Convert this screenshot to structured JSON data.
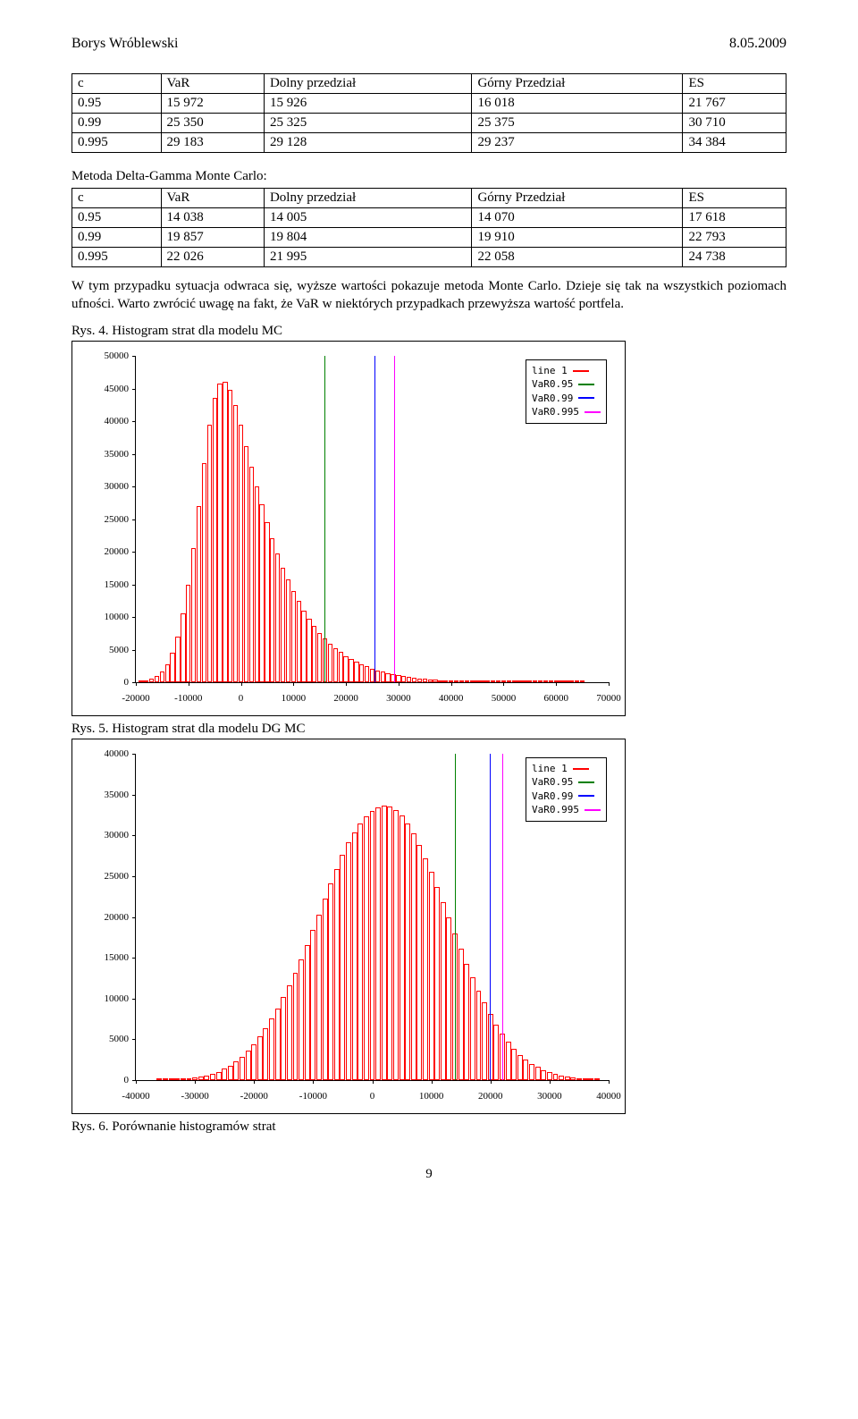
{
  "header": {
    "author": "Borys Wróblewski",
    "date": "8.05.2009"
  },
  "table1": {
    "columns": [
      "c",
      "VaR",
      "Dolny przedział",
      "Górny Przedział",
      "ES"
    ],
    "rows": [
      [
        "0.95",
        "15 972",
        "15 926",
        "16 018",
        "21 767"
      ],
      [
        "0.99",
        "25 350",
        "25 325",
        "25 375",
        "30 710"
      ],
      [
        "0.995",
        "29 183",
        "29 128",
        "29 237",
        "34 384"
      ]
    ]
  },
  "method_title": "Metoda Delta-Gamma Monte Carlo:",
  "table2": {
    "columns": [
      "c",
      "VaR",
      "Dolny przedział",
      "Górny Przedział",
      "ES"
    ],
    "rows": [
      [
        "0.95",
        "14 038",
        "14 005",
        "14 070",
        "17 618"
      ],
      [
        "0.99",
        "19 857",
        "19 804",
        "19 910",
        "22 793"
      ],
      [
        "0.995",
        "22 026",
        "21 995",
        "22 058",
        "24 738"
      ]
    ]
  },
  "paragraph": "W tym przypadku sytuacja odwraca się, wyższe wartości pokazuje metoda Monte Carlo. Dzieje się tak na wszystkich poziomach ufności. Warto zwrócić uwagę na fakt, że  VaR w niektórych przypadkach przewyższa wartość portfela.",
  "fig4_caption": "Rys. 4. Histogram strat dla modelu MC",
  "fig5_caption": "Rys. 5. Histogram strat dla modelu DG MC",
  "fig6_caption": "Rys. 6. Porównanie histogramów strat",
  "page_number": "9",
  "legend": {
    "items": [
      {
        "label": "line 1",
        "color": "#ff0000"
      },
      {
        "label": "VaR0.95",
        "color": "#008000"
      },
      {
        "label": "VaR0.99",
        "color": "#0000ff"
      },
      {
        "label": "VaR0.995",
        "color": "#ff00ff"
      }
    ]
  },
  "chart4": {
    "type": "histogram",
    "bar_border": "#ff0000",
    "bar_fill": "#ffffff",
    "bg": "#ffffff",
    "xlim": [
      -20000,
      70000
    ],
    "ylim": [
      0,
      50000
    ],
    "yticks": [
      0,
      5000,
      10000,
      15000,
      20000,
      25000,
      30000,
      35000,
      40000,
      45000,
      50000
    ],
    "xticks": [
      -20000,
      -10000,
      0,
      10000,
      20000,
      30000,
      40000,
      50000,
      60000,
      70000
    ],
    "vlines": [
      {
        "x": 15972,
        "color": "#008000"
      },
      {
        "x": 25350,
        "color": "#0000ff"
      },
      {
        "x": 29183,
        "color": "#ff00ff"
      }
    ],
    "bars": [
      [
        -19000,
        150
      ],
      [
        -18000,
        320
      ],
      [
        -17000,
        600
      ],
      [
        -16000,
        1000
      ],
      [
        -15000,
        1700
      ],
      [
        -14000,
        2800
      ],
      [
        -13000,
        4500
      ],
      [
        -12000,
        7000
      ],
      [
        -11000,
        10500
      ],
      [
        -10000,
        15000
      ],
      [
        -9000,
        20500
      ],
      [
        -8000,
        27000
      ],
      [
        -7000,
        33500
      ],
      [
        -6000,
        39500
      ],
      [
        -5000,
        43500
      ],
      [
        -4000,
        45800
      ],
      [
        -3000,
        46000
      ],
      [
        -2000,
        44800
      ],
      [
        -1000,
        42500
      ],
      [
        0,
        39500
      ],
      [
        1000,
        36200
      ],
      [
        2000,
        33000
      ],
      [
        3000,
        30000
      ],
      [
        4000,
        27200
      ],
      [
        5000,
        24500
      ],
      [
        6000,
        22000
      ],
      [
        7000,
        19700
      ],
      [
        8000,
        17600
      ],
      [
        9000,
        15700
      ],
      [
        10000,
        14000
      ],
      [
        11000,
        12400
      ],
      [
        12000,
        11000
      ],
      [
        13000,
        9700
      ],
      [
        14000,
        8600
      ],
      [
        15000,
        7600
      ],
      [
        16000,
        6700
      ],
      [
        17000,
        5900
      ],
      [
        18000,
        5200
      ],
      [
        19000,
        4600
      ],
      [
        20000,
        4000
      ],
      [
        21000,
        3500
      ],
      [
        22000,
        3100
      ],
      [
        23000,
        2700
      ],
      [
        24000,
        2400
      ],
      [
        25000,
        2100
      ],
      [
        26000,
        1800
      ],
      [
        27000,
        1600
      ],
      [
        28000,
        1400
      ],
      [
        29000,
        1200
      ],
      [
        30000,
        1050
      ],
      [
        31000,
        900
      ],
      [
        32000,
        780
      ],
      [
        33000,
        670
      ],
      [
        34000,
        580
      ],
      [
        35000,
        500
      ],
      [
        36000,
        430
      ],
      [
        37000,
        370
      ],
      [
        38000,
        320
      ],
      [
        39000,
        275
      ],
      [
        40000,
        235
      ],
      [
        41000,
        200
      ],
      [
        42000,
        170
      ],
      [
        43000,
        145
      ],
      [
        44000,
        125
      ],
      [
        45000,
        105
      ],
      [
        46000,
        90
      ],
      [
        47000,
        76
      ],
      [
        48000,
        65
      ],
      [
        49000,
        55
      ],
      [
        50000,
        47
      ],
      [
        51000,
        40
      ],
      [
        52000,
        34
      ],
      [
        53000,
        29
      ],
      [
        54000,
        25
      ],
      [
        55000,
        21
      ],
      [
        56000,
        18
      ],
      [
        57000,
        15
      ],
      [
        58000,
        13
      ],
      [
        59000,
        11
      ],
      [
        60000,
        9
      ],
      [
        61000,
        8
      ],
      [
        62000,
        7
      ],
      [
        63000,
        6
      ],
      [
        64000,
        5
      ],
      [
        65000,
        4
      ]
    ],
    "bar_width_x": 900
  },
  "chart5": {
    "type": "histogram",
    "bar_border": "#ff0000",
    "bar_fill": "#ffffff",
    "bg": "#ffffff",
    "xlim": [
      -40000,
      40000
    ],
    "ylim": [
      0,
      40000
    ],
    "yticks": [
      0,
      5000,
      10000,
      15000,
      20000,
      25000,
      30000,
      35000,
      40000
    ],
    "xticks": [
      -40000,
      -30000,
      -20000,
      -10000,
      0,
      10000,
      20000,
      30000,
      40000
    ],
    "vlines": [
      {
        "x": 14038,
        "color": "#008000"
      },
      {
        "x": 19857,
        "color": "#0000ff"
      },
      {
        "x": 22026,
        "color": "#ff00ff"
      }
    ],
    "bars": [
      [
        -36000,
        20
      ],
      [
        -35000,
        35
      ],
      [
        -34000,
        55
      ],
      [
        -33000,
        85
      ],
      [
        -32000,
        130
      ],
      [
        -31000,
        190
      ],
      [
        -30000,
        280
      ],
      [
        -29000,
        400
      ],
      [
        -28000,
        560
      ],
      [
        -27000,
        770
      ],
      [
        -26000,
        1040
      ],
      [
        -25000,
        1380
      ],
      [
        -24000,
        1800
      ],
      [
        -23000,
        2300
      ],
      [
        -22000,
        2900
      ],
      [
        -21000,
        3600
      ],
      [
        -20000,
        4400
      ],
      [
        -19000,
        5350
      ],
      [
        -18000,
        6400
      ],
      [
        -17000,
        7550
      ],
      [
        -16000,
        8800
      ],
      [
        -15000,
        10150
      ],
      [
        -14000,
        11600
      ],
      [
        -13000,
        13150
      ],
      [
        -12000,
        14800
      ],
      [
        -11000,
        16550
      ],
      [
        -10000,
        18400
      ],
      [
        -9000,
        20300
      ],
      [
        -8000,
        22200
      ],
      [
        -7000,
        24100
      ],
      [
        -6000,
        25900
      ],
      [
        -5000,
        27600
      ],
      [
        -4000,
        29100
      ],
      [
        -3000,
        30400
      ],
      [
        -2000,
        31500
      ],
      [
        -1000,
        32300
      ],
      [
        0,
        33000
      ],
      [
        1000,
        33400
      ],
      [
        2000,
        33600
      ],
      [
        3000,
        33500
      ],
      [
        4000,
        33100
      ],
      [
        5000,
        32400
      ],
      [
        6000,
        31400
      ],
      [
        7000,
        30200
      ],
      [
        8000,
        28800
      ],
      [
        9000,
        27200
      ],
      [
        10000,
        25500
      ],
      [
        11000,
        23700
      ],
      [
        12000,
        21800
      ],
      [
        13000,
        19900
      ],
      [
        14000,
        18000
      ],
      [
        15000,
        16100
      ],
      [
        16000,
        14300
      ],
      [
        17000,
        12600
      ],
      [
        18000,
        11000
      ],
      [
        19000,
        9500
      ],
      [
        20000,
        8100
      ],
      [
        21000,
        6800
      ],
      [
        22000,
        5700
      ],
      [
        23000,
        4700
      ],
      [
        24000,
        3800
      ],
      [
        25000,
        3100
      ],
      [
        26000,
        2500
      ],
      [
        27000,
        2000
      ],
      [
        28000,
        1600
      ],
      [
        29000,
        1250
      ],
      [
        30000,
        980
      ],
      [
        31000,
        760
      ],
      [
        32000,
        580
      ],
      [
        33000,
        440
      ],
      [
        34000,
        330
      ],
      [
        35000,
        245
      ],
      [
        36000,
        180
      ],
      [
        37000,
        130
      ],
      [
        38000,
        95
      ]
    ],
    "bar_width_x": 900
  }
}
